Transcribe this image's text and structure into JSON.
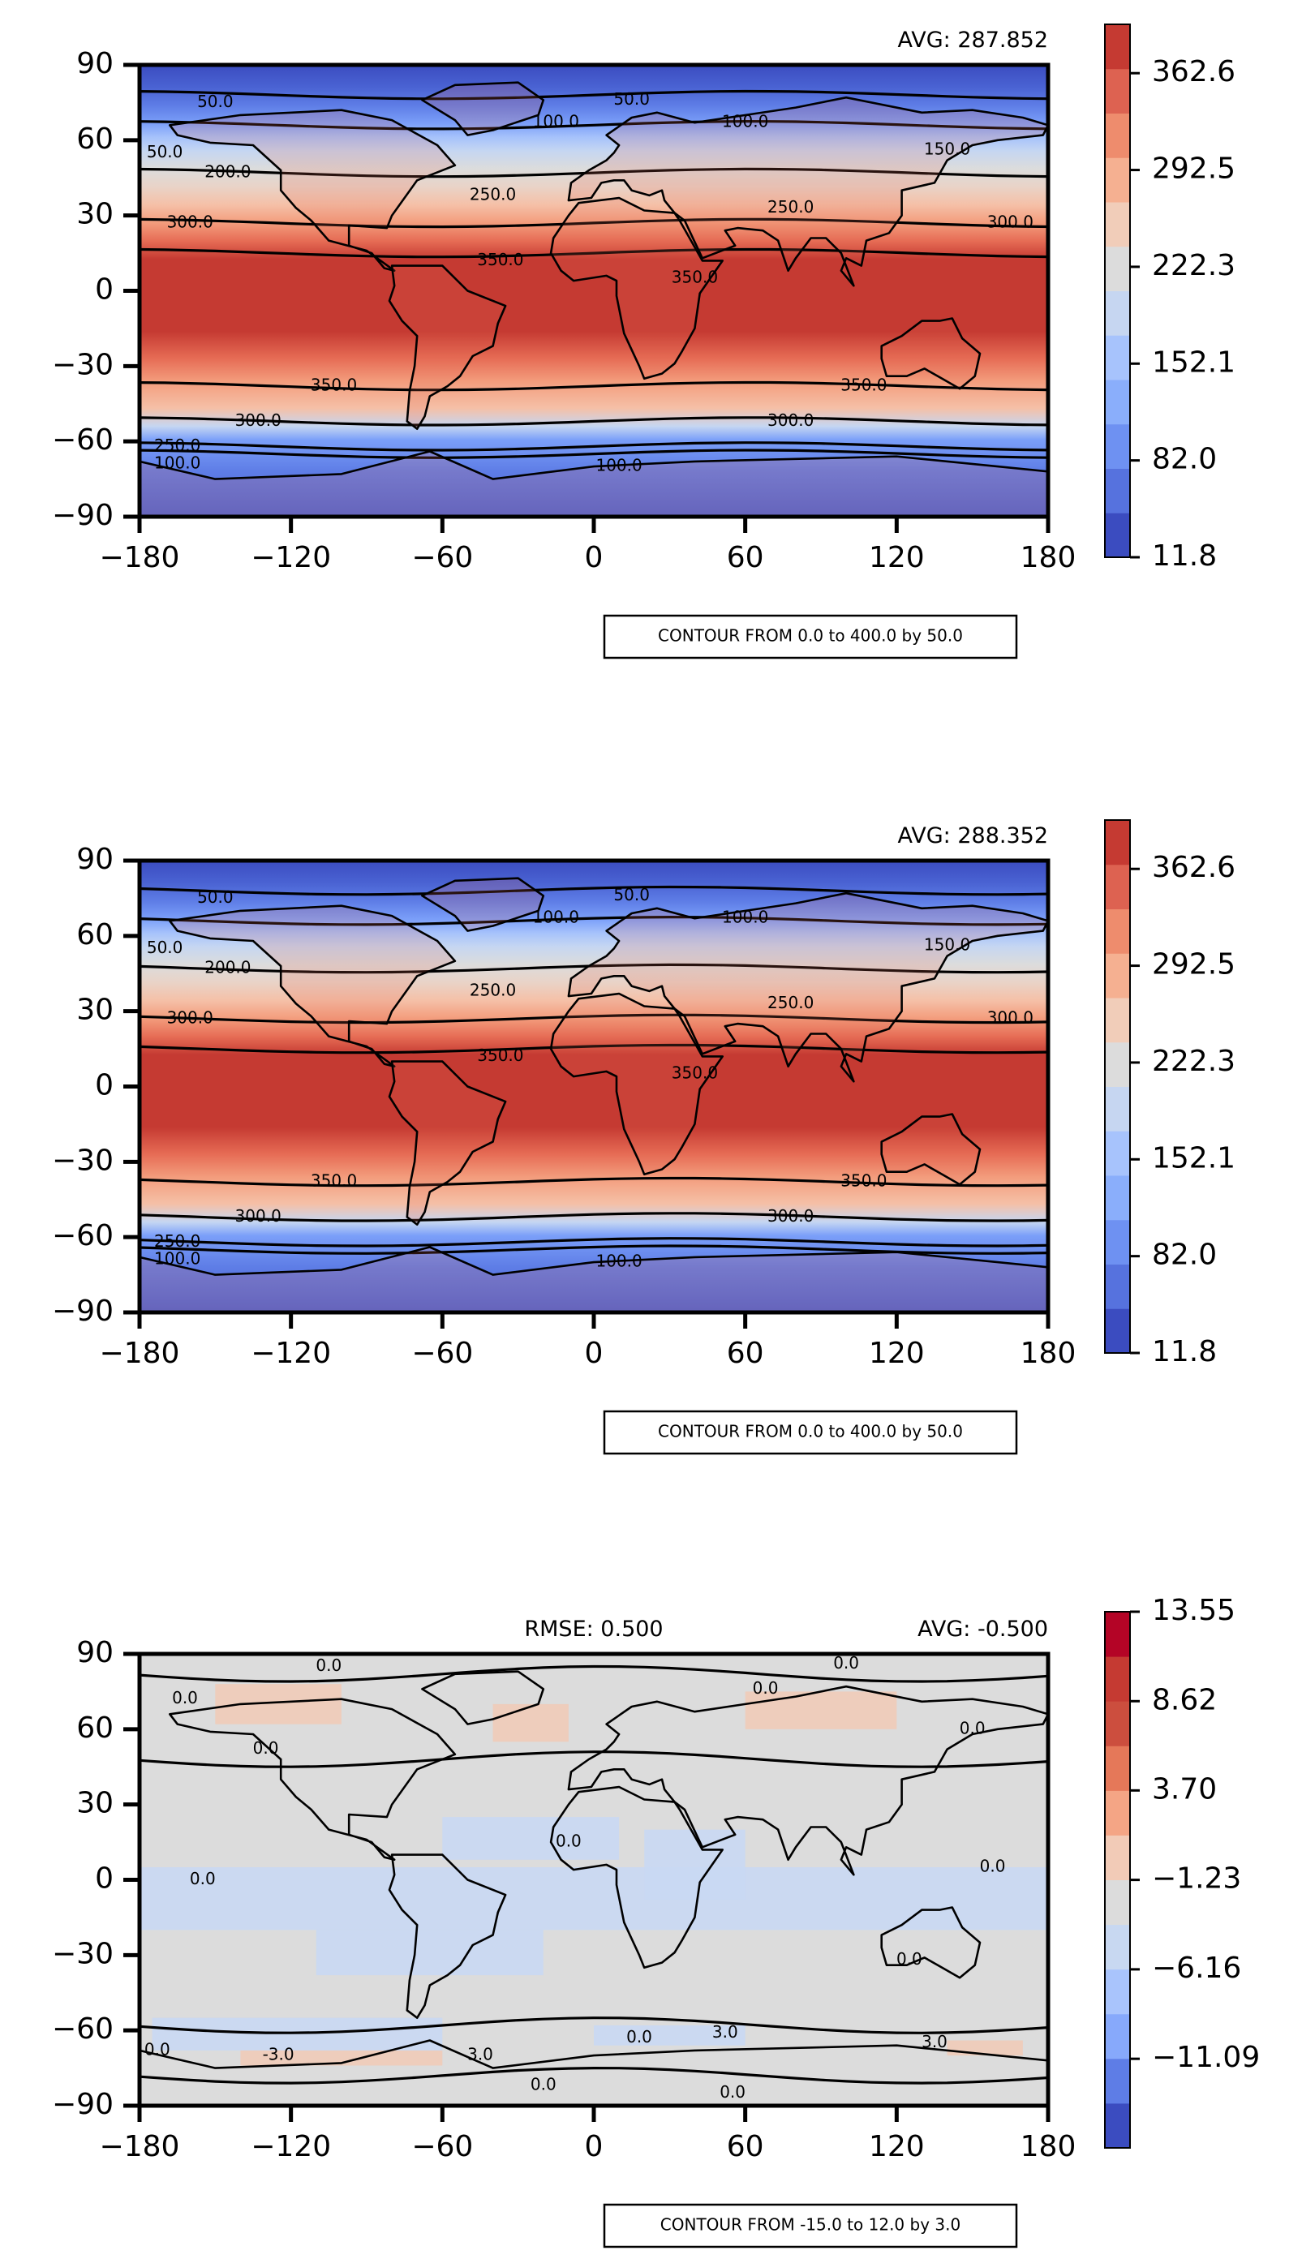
{
  "chart_data": [
    {
      "type": "heatmap",
      "title": "",
      "xlabel": "",
      "ylabel": "",
      "xlim": [
        -180,
        180
      ],
      "ylim": [
        -90,
        90
      ],
      "xticks": [
        "−180",
        "−120",
        "−60",
        "0",
        "60",
        "120",
        "180"
      ],
      "yticks": [
        "90",
        "60",
        "30",
        "0",
        "−30",
        "−60",
        "−90"
      ],
      "stat_right": "AVG: 287.852",
      "stat_left": "",
      "contour_note": "CONTOUR FROM 0.0 to 400.0 by 50.0",
      "colorbar": {
        "min": 11.8,
        "max": 398.0,
        "ticks": [
          "11.8",
          "82.0",
          "152.1",
          "222.3",
          "292.5",
          "362.6"
        ]
      },
      "legend": "colorbar at right",
      "grid": false,
      "contour_labels": [
        "50.0",
        "100.0",
        "150.0",
        "200.0",
        "250.0",
        "300.0",
        "350.0"
      ]
    },
    {
      "type": "heatmap",
      "title": "",
      "xlabel": "",
      "ylabel": "",
      "xlim": [
        -180,
        180
      ],
      "ylim": [
        -90,
        90
      ],
      "xticks": [
        "−180",
        "−120",
        "−60",
        "0",
        "60",
        "120",
        "180"
      ],
      "yticks": [
        "90",
        "60",
        "30",
        "0",
        "−30",
        "−60",
        "−90"
      ],
      "stat_right": "AVG: 288.352",
      "stat_left": "",
      "contour_note": "CONTOUR FROM 0.0 to 400.0 by 50.0",
      "colorbar": {
        "min": 11.8,
        "max": 398.0,
        "ticks": [
          "11.8",
          "82.0",
          "152.1",
          "222.3",
          "292.5",
          "362.6"
        ]
      },
      "legend": "colorbar at right",
      "grid": false,
      "contour_labels": [
        "50.0",
        "100.0",
        "150.0",
        "200.0",
        "250.0",
        "300.0",
        "350.0"
      ]
    },
    {
      "type": "heatmap",
      "title": "",
      "xlabel": "",
      "ylabel": "",
      "xlim": [
        -180,
        180
      ],
      "ylim": [
        -90,
        90
      ],
      "xticks": [
        "−180",
        "−120",
        "−60",
        "0",
        "60",
        "120",
        "180"
      ],
      "yticks": [
        "90",
        "60",
        "30",
        "0",
        "−30",
        "−60",
        "−90"
      ],
      "stat_right": "AVG: -0.500",
      "stat_left": "RMSE: 0.500",
      "contour_note": "CONTOUR FROM -15.0 to 12.0 by 3.0",
      "colorbar": {
        "min": -16.0,
        "max": 13.55,
        "ticks": [
          "−11.09",
          "−6.16",
          "−1.23",
          "3.70",
          "8.62",
          "13.55"
        ]
      },
      "legend": "colorbar at right",
      "grid": false,
      "contour_labels": [
        "0.0",
        "-3.0",
        "3.0"
      ]
    }
  ]
}
